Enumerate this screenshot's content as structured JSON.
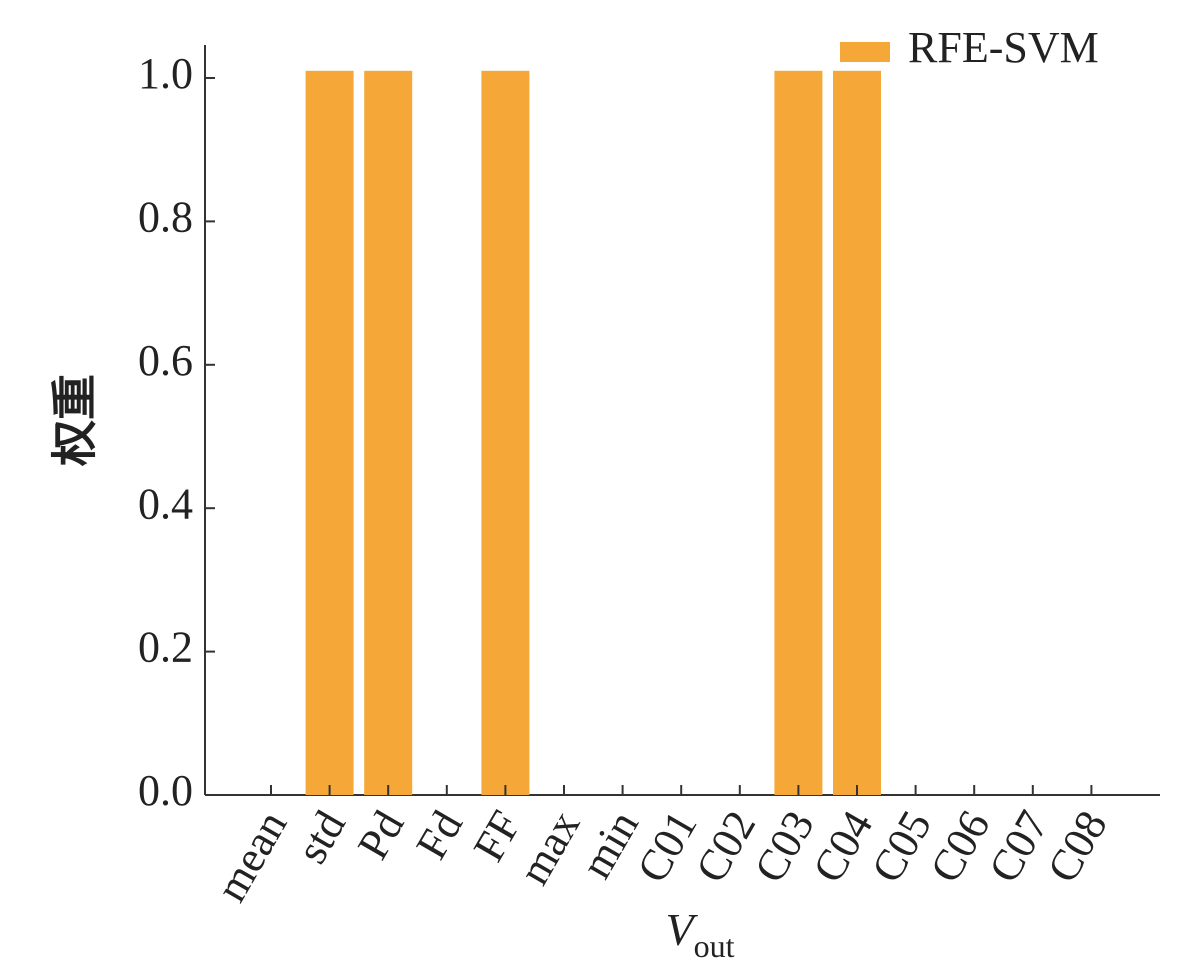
{
  "chart_data": {
    "type": "bar",
    "categories": [
      "mean",
      "std",
      "Pd",
      "Fd",
      "FF",
      "max",
      "min",
      "C01",
      "C02",
      "C03",
      "C04",
      "C05",
      "C06",
      "C07",
      "C08"
    ],
    "series": [
      {
        "name": "RFE-SVM",
        "color": "#f5a837",
        "values": [
          0,
          1.01,
          1.01,
          0,
          1.01,
          0,
          0,
          0,
          0,
          1.01,
          1.01,
          0,
          0,
          0,
          0
        ]
      }
    ],
    "ylim": [
      0,
      1.046
    ],
    "yticks": [
      {
        "value": 0,
        "label": "0.0"
      },
      {
        "value": 0.2,
        "label": "0.2"
      },
      {
        "value": 0.4,
        "label": "0.4"
      },
      {
        "value": 0.6,
        "label": "0.6"
      },
      {
        "value": 0.8,
        "label": "0.8"
      },
      {
        "value": 1.0,
        "label": "1.0"
      }
    ],
    "ylabel": "权重",
    "xlabel": "V",
    "xlabel_sub": "out",
    "legend": "top-right"
  }
}
